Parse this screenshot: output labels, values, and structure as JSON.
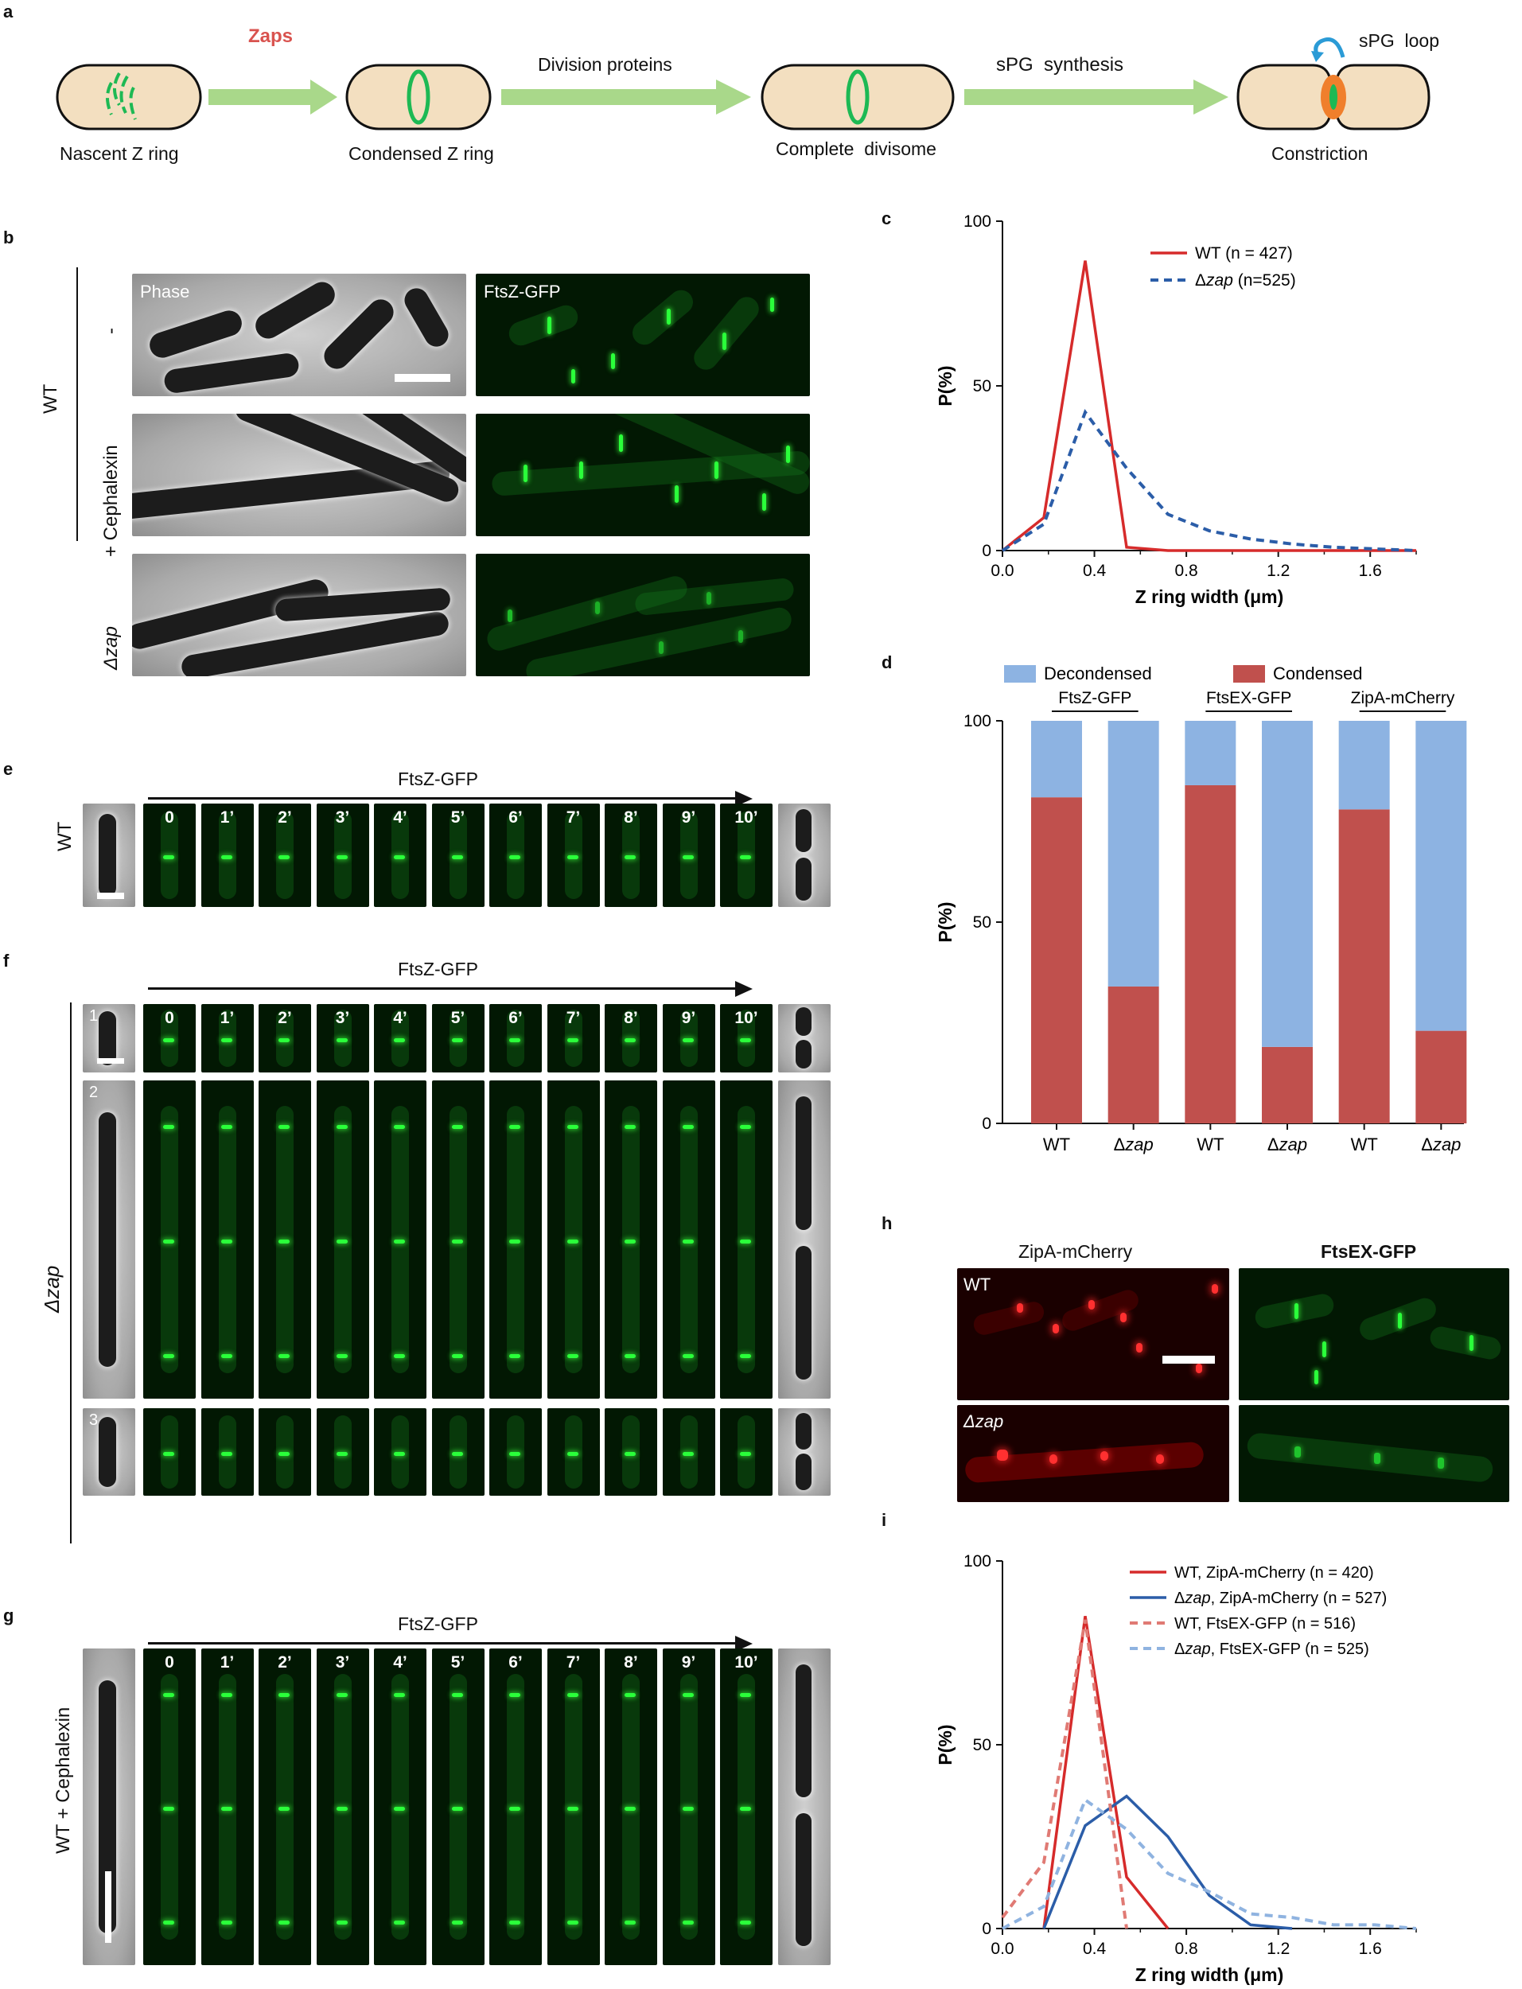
{
  "panels": {
    "a": "a",
    "b": "b",
    "c": "c",
    "d": "d",
    "e": "e",
    "f": "f",
    "g": "g",
    "h": "h",
    "i": "i"
  },
  "panel_a": {
    "stages": [
      "Nascent Z ring",
      "Condensed Z ring",
      "Complete  divisome",
      "Constriction"
    ],
    "arrows": [
      "Zaps",
      "Division proteins",
      "sPG  synthesis"
    ],
    "loop_label": "sPG  loop",
    "colors": {
      "cell": "#f3dfc0",
      "ring": "#1db954",
      "arrow": "#a9d88a",
      "zaps": "#d9534f",
      "constriction": "#f07f2c",
      "loop_arrow": "#2b9bd6"
    }
  },
  "panel_b": {
    "group_label": "WT",
    "rows": [
      "-",
      "+ Cephalexin",
      "Δzap"
    ],
    "channels": [
      "Phase",
      "FtsZ-GFP"
    ]
  },
  "panel_efg": {
    "arrow_label": "FtsZ-GFP",
    "times": [
      "0",
      "1’",
      "2’",
      "3’",
      "4’",
      "5’",
      "6’",
      "7’",
      "8’",
      "9’",
      "10’"
    ],
    "e_label": "WT",
    "f_label": "Δzap",
    "f_cells": [
      "1",
      "2",
      "3"
    ],
    "g_label": "WT + Cephalexin"
  },
  "panel_h": {
    "channels": [
      "ZipA-mCherry",
      "FtsEX-GFP"
    ],
    "rows": [
      "WT",
      "Δzap"
    ]
  },
  "chart_data": [
    {
      "panel": "c",
      "type": "line",
      "xlabel": "Z ring width (μm)",
      "ylabel": "P(%)",
      "xlim": [
        0,
        1.8
      ],
      "ylim": [
        0,
        100
      ],
      "xticks": [
        "0.0",
        "0.4",
        "0.8",
        "1.2",
        "1.6"
      ],
      "yticks": [
        "0",
        "50",
        "100"
      ],
      "legend_position": "top-right",
      "series": [
        {
          "name": "WT (n = 427)",
          "color": "#d62b2b",
          "dash": false,
          "x": [
            0,
            0.18,
            0.36,
            0.54,
            0.72,
            1.8
          ],
          "y": [
            0,
            10,
            88,
            1,
            0,
            0
          ]
        },
        {
          "name": "Δzap (n=525)",
          "color": "#2b5da8",
          "dash": true,
          "x": [
            0,
            0.18,
            0.36,
            0.54,
            0.72,
            0.9,
            1.08,
            1.26,
            1.44,
            1.62,
            1.8
          ],
          "y": [
            0,
            8,
            42,
            25,
            11,
            6,
            3.5,
            2,
            1,
            0.5,
            0
          ]
        }
      ]
    },
    {
      "panel": "d",
      "type": "bar",
      "stacked": true,
      "ylabel": "P(%)",
      "ylim": [
        0,
        100
      ],
      "yticks": [
        "0",
        "50",
        "100"
      ],
      "categories": [
        "WT",
        "Δzap",
        "WT",
        "Δzap",
        "WT",
        "Δzap"
      ],
      "groups": [
        "FtsZ-GFP",
        "FtsEX-GFP",
        "ZipA-mCherry"
      ],
      "legend_position": "top",
      "series": [
        {
          "name": "Condensed",
          "color": "#c0504d",
          "values": [
            81,
            34,
            84,
            19,
            78,
            23
          ]
        },
        {
          "name": "Decondensed",
          "color": "#8db3e2",
          "values": [
            19,
            66,
            16,
            81,
            22,
            77
          ]
        }
      ]
    },
    {
      "panel": "i",
      "type": "line",
      "xlabel": "Z ring width (μm)",
      "ylabel": "P(%)",
      "xlim": [
        0,
        1.8
      ],
      "ylim": [
        0,
        100
      ],
      "xticks": [
        "0.0",
        "0.4",
        "0.8",
        "1.2",
        "1.6"
      ],
      "yticks": [
        "0",
        "50",
        "100"
      ],
      "legend_position": "top-right",
      "series": [
        {
          "name": "WT, ZipA-mCherry (n = 420)",
          "color": "#d62b2b",
          "dash": false,
          "x": [
            0.18,
            0.36,
            0.54,
            0.72
          ],
          "y": [
            0,
            85,
            14,
            0
          ]
        },
        {
          "name": "Δzap, ZipA-mCherry (n = 527)",
          "color": "#2b5da8",
          "dash": false,
          "x": [
            0.18,
            0.36,
            0.54,
            0.72,
            0.9,
            1.08,
            1.26
          ],
          "y": [
            0,
            28,
            36,
            25,
            9,
            1,
            0
          ]
        },
        {
          "name": "WT, FtsEX-GFP (n = 516)",
          "color": "#e07a74",
          "dash": true,
          "x": [
            0,
            0.18,
            0.36,
            0.54
          ],
          "y": [
            3,
            18,
            84,
            0
          ]
        },
        {
          "name": "Δzap, FtsEX-GFP (n = 525)",
          "color": "#8fb3e0",
          "dash": true,
          "x": [
            0,
            0.18,
            0.36,
            0.54,
            0.72,
            0.9,
            1.08,
            1.26,
            1.44,
            1.62,
            1.8
          ],
          "y": [
            0,
            6,
            35,
            27,
            15,
            10,
            4,
            3,
            1,
            1,
            0
          ]
        }
      ]
    }
  ]
}
